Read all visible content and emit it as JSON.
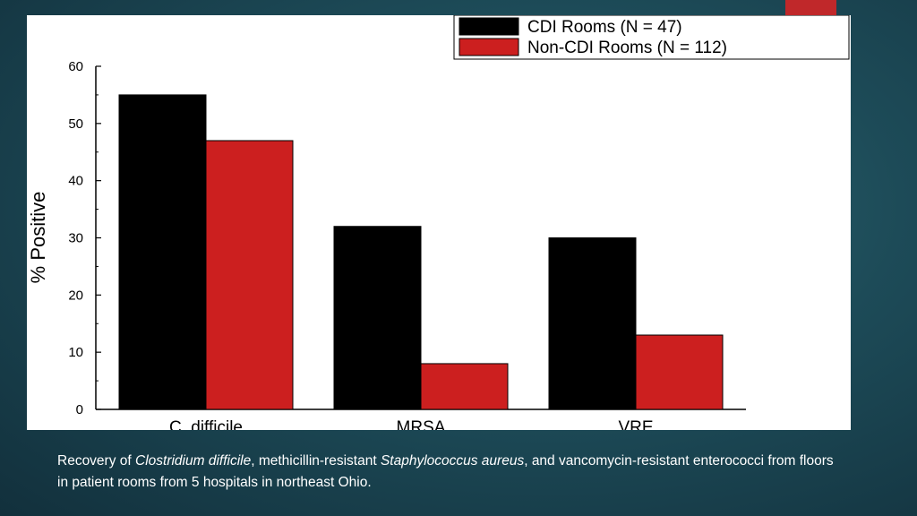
{
  "chart_data": {
    "type": "bar",
    "categories": [
      "C. difficile",
      "MRSA",
      "VRE"
    ],
    "series": [
      {
        "name": "CDI Rooms (N = 47)",
        "values": [
          55,
          32,
          30
        ],
        "color": "#000000"
      },
      {
        "name": "Non-CDI Rooms (N = 112)",
        "values": [
          47,
          8,
          13
        ],
        "color": "#cc1f1f"
      }
    ],
    "ylabel": "% Positive",
    "xlabel": "",
    "ylim": [
      0,
      60
    ],
    "yticks": [
      0,
      10,
      20,
      30,
      40,
      50,
      60
    ],
    "grid": false,
    "legend": "top-right"
  },
  "caption": {
    "prefix": "Recovery of ",
    "organism1": "Clostridium difficile",
    "mid": ", methicillin-resistant ",
    "organism2": "Staphylococcus aureus",
    "suffix": ", and vancomycin-resistant enterococci from floors in patient rooms from 5 hospitals in northeast Ohio."
  },
  "colors": {
    "accent": "#c0282a"
  }
}
